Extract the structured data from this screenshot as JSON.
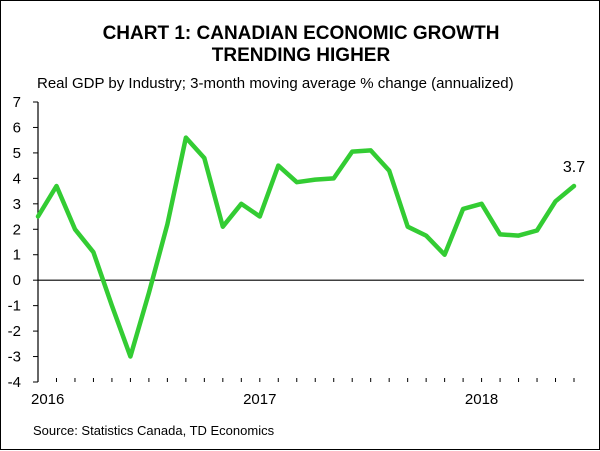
{
  "title_line1": "CHART 1: CANADIAN ECONOMIC GROWTH",
  "title_line2": "TRENDING HIGHER",
  "subtitle": "Real GDP by Industry; 3-month moving average % change (annualized)",
  "source": "Source: Statistics Canada, TD Economics",
  "end_label": "3.7",
  "colors": {
    "line": "#33cc33",
    "axis": "#000000"
  },
  "chart_data": {
    "type": "line",
    "title": "CHART 1: CANADIAN ECONOMIC GROWTH TRENDING HIGHER",
    "ylabel": "",
    "xlabel": "",
    "ylim": [
      -4,
      7
    ],
    "yticks": [
      7,
      6,
      5,
      4,
      3,
      2,
      1,
      0,
      -1,
      -2,
      -3,
      -4
    ],
    "ytick_labels": [
      "7",
      "6",
      "5",
      "4",
      "3",
      "2",
      "1",
      "0",
      "-1",
      "-2",
      "-3",
      "-4"
    ],
    "xticks": [
      "2016",
      "2017",
      "2018"
    ],
    "grid": false,
    "series": [
      {
        "values": [
          2.5,
          3.7,
          2.0,
          1.1,
          -1.0,
          -3.0,
          -0.5,
          2.2,
          5.6,
          4.8,
          2.1,
          3.0,
          2.5,
          4.5,
          3.85,
          3.95,
          4.0,
          5.05,
          5.1,
          4.3,
          2.1,
          1.75,
          1.0,
          2.8,
          3.0,
          1.8,
          1.75,
          1.95,
          3.1,
          3.7
        ],
        "months": [
          "2016-01",
          "2016-02",
          "2016-03",
          "2016-04",
          "2016-05",
          "2016-06",
          "2016-07",
          "2016-08",
          "2016-09",
          "2016-10",
          "2016-11",
          "2016-12",
          "2017-01",
          "2017-02",
          "2017-03",
          "2017-04",
          "2017-05",
          "2017-06",
          "2017-07",
          "2017-08",
          "2017-09",
          "2017-10",
          "2017-11",
          "2017-12",
          "2018-01",
          "2018-02",
          "2018-03",
          "2018-04",
          "2018-05",
          "2018-06"
        ]
      }
    ]
  }
}
